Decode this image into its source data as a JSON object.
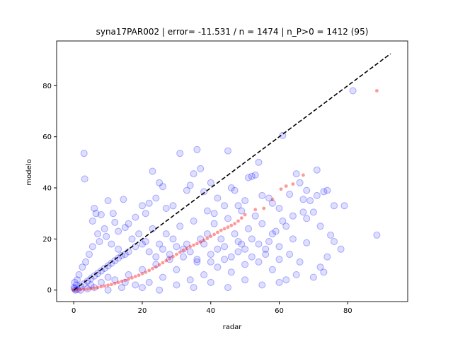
{
  "chart_data": {
    "type": "scatter",
    "title": "syna17PAR002 | error= -11.531 / n = 1474 | n_P>0 = 1412 (95)",
    "xlabel": "radar",
    "ylabel": "modelo",
    "xlim": [
      -5,
      97.5
    ],
    "ylim": [
      -4.5,
      97.5
    ],
    "xticks": [
      0,
      20,
      40,
      60,
      80
    ],
    "yticks": [
      0,
      20,
      40,
      60,
      80
    ],
    "grid": false,
    "colors": {
      "scatter": "#0000ff",
      "qq": "#ff0000",
      "reference": "#000000"
    },
    "reference_line": {
      "style": "dashed",
      "x": [
        0,
        92.5
      ],
      "y": [
        0,
        92.5
      ]
    },
    "series": [
      {
        "style": "scatter",
        "points": [
          [
            3,
            53.5
          ],
          [
            3.2,
            43.5
          ],
          [
            6,
            32
          ],
          [
            6.5,
            30
          ],
          [
            5.5,
            27
          ],
          [
            8,
            29.5
          ],
          [
            7,
            22
          ],
          [
            9,
            24
          ],
          [
            10,
            35
          ],
          [
            11.5,
            30
          ],
          [
            14.5,
            35.5
          ],
          [
            12,
            26.5
          ],
          [
            13,
            23
          ],
          [
            16,
            26
          ],
          [
            15,
            24.5
          ],
          [
            18,
            28.5
          ],
          [
            20,
            33
          ],
          [
            21,
            30
          ],
          [
            22,
            34
          ],
          [
            23,
            46.5
          ],
          [
            25,
            42
          ],
          [
            26,
            40.5
          ],
          [
            24,
            36
          ],
          [
            27,
            32
          ],
          [
            29,
            33
          ],
          [
            31,
            53.5
          ],
          [
            33,
            39
          ],
          [
            34,
            41
          ],
          [
            36,
            55
          ],
          [
            37,
            47.5
          ],
          [
            35,
            45.5
          ],
          [
            38,
            38.5
          ],
          [
            39,
            31
          ],
          [
            40,
            42
          ],
          [
            41,
            30
          ],
          [
            42,
            36
          ],
          [
            44,
            33
          ],
          [
            45,
            54.5
          ],
          [
            46,
            40
          ],
          [
            47,
            39
          ],
          [
            48,
            33
          ],
          [
            49,
            31
          ],
          [
            50,
            35
          ],
          [
            51,
            44
          ],
          [
            52,
            44.5
          ],
          [
            53,
            45
          ],
          [
            54,
            50
          ],
          [
            55,
            37
          ],
          [
            57,
            36
          ],
          [
            58,
            34
          ],
          [
            60,
            32
          ],
          [
            61,
            60.5
          ],
          [
            63,
            37.5
          ],
          [
            62,
            25
          ],
          [
            64,
            20
          ],
          [
            65,
            45.5
          ],
          [
            66,
            42
          ],
          [
            67,
            30.5
          ],
          [
            68,
            39
          ],
          [
            69,
            35
          ],
          [
            70,
            30.5
          ],
          [
            71,
            47
          ],
          [
            73,
            38.5
          ],
          [
            74,
            39
          ],
          [
            72,
            25
          ],
          [
            75,
            21.5
          ],
          [
            76,
            19
          ],
          [
            78,
            16
          ],
          [
            74,
            13
          ],
          [
            73,
            7
          ],
          [
            81.5,
            78
          ],
          [
            88.5,
            21.5
          ],
          [
            68,
            18.5
          ],
          [
            63,
            14
          ],
          [
            60,
            12
          ],
          [
            58,
            8
          ],
          [
            56,
            16
          ],
          [
            54,
            18
          ],
          [
            52,
            13
          ],
          [
            50,
            10
          ],
          [
            48,
            15
          ],
          [
            46,
            7
          ],
          [
            44,
            12
          ],
          [
            42,
            9
          ],
          [
            40,
            14
          ],
          [
            38,
            6
          ],
          [
            36,
            11
          ],
          [
            34,
            4
          ],
          [
            32,
            16
          ],
          [
            30,
            8
          ],
          [
            28,
            12
          ],
          [
            26,
            5
          ],
          [
            24,
            10
          ],
          [
            22,
            3
          ],
          [
            20,
            8
          ],
          [
            18,
            2
          ],
          [
            16,
            6
          ],
          [
            14,
            1
          ],
          [
            12,
            4
          ],
          [
            10,
            0
          ],
          [
            8,
            3
          ],
          [
            6,
            1
          ],
          [
            4,
            0.5
          ],
          [
            2,
            0
          ],
          [
            1,
            0.2
          ],
          [
            0.5,
            0
          ],
          [
            1.5,
            6
          ],
          [
            2.5,
            9
          ],
          [
            3.5,
            11
          ],
          [
            4.5,
            14
          ],
          [
            5.5,
            17
          ],
          [
            7.5,
            19
          ],
          [
            9.5,
            21
          ],
          [
            11,
            18
          ],
          [
            13,
            16
          ],
          [
            15,
            14
          ],
          [
            17,
            20
          ],
          [
            19,
            22
          ],
          [
            21,
            19
          ],
          [
            23,
            24
          ],
          [
            25,
            18
          ],
          [
            27,
            22
          ],
          [
            29,
            20
          ],
          [
            31,
            25
          ],
          [
            33,
            18
          ],
          [
            35,
            27
          ],
          [
            37,
            20
          ],
          [
            39,
            22
          ],
          [
            41,
            26
          ],
          [
            43,
            20
          ],
          [
            45,
            28
          ],
          [
            47,
            22
          ],
          [
            49,
            18
          ],
          [
            51,
            24
          ],
          [
            53,
            29
          ],
          [
            55,
            26
          ],
          [
            57,
            19
          ],
          [
            59,
            23
          ],
          [
            61,
            27
          ],
          [
            62,
            4
          ],
          [
            65,
            6
          ],
          [
            70,
            5
          ],
          [
            60,
            3
          ],
          [
            55,
            2
          ],
          [
            50,
            4
          ],
          [
            45,
            1
          ],
          [
            40,
            3
          ],
          [
            35,
            1
          ],
          [
            30,
            2
          ],
          [
            25,
            0
          ],
          [
            20,
            1
          ],
          [
            15,
            3
          ],
          [
            10,
            5
          ],
          [
            5,
            2
          ],
          [
            1,
            4
          ],
          [
            0.8,
            2
          ],
          [
            0.2,
            0.5
          ],
          [
            0.1,
            1
          ],
          [
            0.3,
            3
          ],
          [
            2,
            1.5
          ],
          [
            3,
            2.5
          ],
          [
            4,
            3.5
          ],
          [
            5,
            4.5
          ],
          [
            6,
            5.5
          ],
          [
            7,
            6.5
          ],
          [
            8,
            7.5
          ],
          [
            9,
            8.5
          ],
          [
            10,
            9.5
          ],
          [
            11,
            10.5
          ],
          [
            12,
            11.5
          ],
          [
            13,
            12.5
          ],
          [
            14,
            13.5
          ],
          [
            16,
            15
          ],
          [
            18,
            17
          ],
          [
            20,
            18
          ],
          [
            22,
            15
          ],
          [
            24,
            13
          ],
          [
            26,
            16
          ],
          [
            28,
            14
          ],
          [
            30,
            17
          ],
          [
            32,
            13
          ],
          [
            34,
            15
          ],
          [
            36,
            12
          ],
          [
            38,
            18
          ],
          [
            40,
            11
          ],
          [
            42,
            16
          ],
          [
            44,
            17
          ],
          [
            46,
            13
          ],
          [
            48,
            19
          ],
          [
            50,
            16
          ],
          [
            52,
            20
          ],
          [
            54,
            11
          ],
          [
            56,
            14
          ],
          [
            58,
            22
          ],
          [
            60,
            17
          ],
          [
            64,
            29
          ],
          [
            66,
            11
          ],
          [
            68,
            28
          ],
          [
            72,
            9
          ],
          [
            76,
            33
          ],
          [
            79,
            33
          ],
          [
            71,
            37
          ],
          [
            67,
            35.5
          ]
        ]
      },
      {
        "style": "qq",
        "points": [
          [
            0,
            0
          ],
          [
            1,
            0.1
          ],
          [
            2,
            0.2
          ],
          [
            3,
            0.3
          ],
          [
            4,
            0.4
          ],
          [
            5,
            0.6
          ],
          [
            6,
            0.8
          ],
          [
            7,
            1.0
          ],
          [
            8,
            1.3
          ],
          [
            9,
            1.6
          ],
          [
            10,
            1.9
          ],
          [
            11,
            2.2
          ],
          [
            12,
            2.6
          ],
          [
            13,
            3.0
          ],
          [
            14,
            3.4
          ],
          [
            15,
            3.8
          ],
          [
            16,
            4.3
          ],
          [
            17,
            4.8
          ],
          [
            18,
            5.3
          ],
          [
            19,
            5.8
          ],
          [
            20,
            6.4
          ],
          [
            21,
            7.0
          ],
          [
            22,
            7.7
          ],
          [
            23,
            8.4
          ],
          [
            24,
            9.1
          ],
          [
            25,
            9.9
          ],
          [
            26,
            10.7
          ],
          [
            27,
            11.5
          ],
          [
            28,
            12.3
          ],
          [
            29,
            13.1
          ],
          [
            30,
            14.0
          ],
          [
            31,
            14.8
          ],
          [
            32,
            15.6
          ],
          [
            33,
            16.3
          ],
          [
            34,
            17.0
          ],
          [
            35,
            17.6
          ],
          [
            36,
            18.2
          ],
          [
            37,
            18.8
          ],
          [
            38,
            19.5
          ],
          [
            39,
            20.2
          ],
          [
            40,
            21.0
          ],
          [
            41,
            21.8
          ],
          [
            42,
            22.6
          ],
          [
            43,
            23.4
          ],
          [
            44,
            24.0
          ],
          [
            45,
            24.6
          ],
          [
            46,
            25.3
          ],
          [
            47,
            26.0
          ],
          [
            48,
            27.0
          ],
          [
            49,
            28.2
          ],
          [
            50,
            29.5
          ],
          [
            53,
            31.5
          ],
          [
            55.5,
            32
          ],
          [
            58,
            35.5
          ],
          [
            60.5,
            39.5
          ],
          [
            62,
            40.7
          ],
          [
            64,
            41.5
          ],
          [
            67,
            45
          ],
          [
            88.5,
            78
          ]
        ]
      }
    ]
  }
}
